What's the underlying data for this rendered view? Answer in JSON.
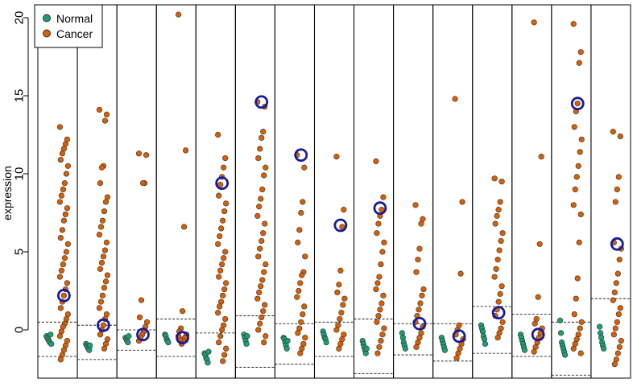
{
  "chart_data": {
    "type": "scatter",
    "title": "",
    "xlabel": "",
    "ylabel": "expression",
    "ylim": [
      -3.2,
      21.5
    ],
    "yticks": [
      0,
      5,
      10,
      15,
      20
    ],
    "grid": false,
    "legend": {
      "placement": "top-left",
      "entries": [
        {
          "name": "Normal",
          "color": "#1b9e77"
        },
        {
          "name": "Cancer",
          "color": "#d95f02"
        }
      ]
    },
    "marker_color": "#1a1a99",
    "panels": [
      {
        "normal": [
          -0.4,
          -0.5,
          -0.6,
          -0.7,
          -0.8,
          -0.3,
          -0.9
        ],
        "cancer": [
          13.0,
          12.2,
          11.9,
          11.6,
          11.3,
          10.9,
          10.5,
          10.0,
          9.4,
          9.0,
          8.6,
          8.2,
          7.8,
          7.4,
          7.0,
          6.4,
          5.9,
          5.5,
          5.0,
          4.6,
          4.2,
          3.8,
          3.4,
          3.0,
          2.6,
          2.2,
          1.8,
          1.4,
          1.0,
          0.7,
          0.4,
          0.2,
          -0.1,
          -0.4,
          -0.7,
          -1.0,
          -1.3,
          -1.6,
          -1.9
        ],
        "marker": 2.2,
        "upper": 0.5,
        "lower": -1.7
      },
      {
        "normal": [
          -0.9,
          -1.0,
          -1.1,
          -1.2,
          -1.3,
          -1.0
        ],
        "cancer": [
          14.1,
          13.8,
          13.4,
          10.5,
          10.4,
          9.4,
          8.5,
          8.2,
          7.6,
          7.0,
          6.6,
          6.1,
          5.6,
          5.1,
          4.7,
          4.3,
          3.9,
          3.5,
          3.1,
          2.7,
          2.2,
          1.8,
          1.4,
          1.0,
          0.7,
          0.3,
          0.0,
          -0.3,
          -0.6,
          -0.9,
          -1.2
        ],
        "marker": 0.3,
        "upper": 0.3,
        "lower": -1.9
      },
      {
        "normal": [
          -0.5,
          -0.6,
          -0.7,
          -0.8,
          -0.4
        ],
        "cancer": [
          11.3,
          11.2,
          9.4,
          9.4,
          1.9,
          0.8,
          0.5,
          0.2,
          -0.1,
          -0.3,
          -0.5,
          -0.7
        ],
        "marker": -0.3,
        "upper": 0.0,
        "lower": -1.3
      },
      {
        "normal": [
          -0.3,
          -0.4,
          -0.6,
          -0.7,
          -0.8
        ],
        "cancer": [
          20.2,
          11.5,
          6.6,
          1.2,
          0.1,
          -0.1,
          -0.3,
          -0.5,
          -0.7,
          -0.9,
          -0.6,
          -0.4
        ],
        "marker": -0.5,
        "upper": 0.7,
        "lower": -1.7
      },
      {
        "normal": [
          -1.5,
          -1.6,
          -1.8,
          -1.9,
          -2.1,
          -1.4
        ],
        "cancer": [
          12.5,
          11.0,
          10.4,
          9.8,
          9.3,
          8.6,
          8.1,
          7.6,
          7.0,
          6.5,
          6.0,
          5.5,
          5.0,
          4.6,
          4.2,
          3.8,
          3.4,
          3.0,
          2.6,
          2.2,
          1.8,
          1.5,
          1.1,
          0.7,
          0.3,
          0.0,
          -0.4,
          -0.8,
          -1.2,
          -1.6,
          -2.0
        ],
        "marker": 9.4,
        "upper": -0.2,
        "lower": null
      },
      {
        "normal": [
          -0.3,
          -0.5,
          -0.7,
          -0.9,
          -0.4
        ],
        "cancer": [
          14.6,
          14.3,
          12.7,
          12.3,
          11.6,
          11.0,
          10.4,
          9.9,
          9.0,
          8.4,
          7.9,
          7.3,
          6.8,
          6.2,
          5.7,
          5.2,
          4.7,
          4.2,
          3.7,
          3.2,
          2.8,
          2.4,
          2.0,
          1.6,
          1.2,
          0.8,
          0.4,
          0.0,
          -0.4,
          -0.8
        ],
        "marker": 14.6,
        "upper": 0.9,
        "lower": -2.4
      },
      {
        "normal": [
          -0.5,
          -0.6,
          -0.8,
          -1.0,
          -1.2,
          -0.7
        ],
        "cancer": [
          11.2,
          10.4,
          8.2,
          7.5,
          6.4,
          5.6,
          4.7,
          3.7,
          3.5,
          3.0,
          2.5,
          2.1,
          1.5,
          1.0,
          0.5,
          0.1,
          -0.2,
          -0.5,
          -0.9,
          -1.2,
          -1.5
        ],
        "marker": 11.2,
        "upper": 0.4,
        "lower": -2.2
      },
      {
        "normal": [
          -0.1,
          -0.3,
          -0.5,
          -0.6,
          -0.8
        ],
        "cancer": [
          11.1,
          7.7,
          6.6,
          3.8,
          2.9,
          2.4,
          2.0,
          1.6,
          1.1,
          0.7,
          0.3,
          0.0,
          -0.3,
          -0.6,
          -0.9,
          -1.2
        ],
        "marker": 6.7,
        "upper": 0.5,
        "lower": -1.7
      },
      {
        "normal": [
          -0.7,
          -0.9,
          -1.1,
          -1.3,
          -1.5,
          -1.2
        ],
        "cancer": [
          10.8,
          8.5,
          7.7,
          7.3,
          6.8,
          6.2,
          5.6,
          5.0,
          4.2,
          3.4,
          3.0,
          2.6,
          2.2,
          1.7,
          1.3,
          0.9,
          0.5,
          0.1,
          -0.3,
          -0.7,
          -1.1,
          -1.5
        ],
        "marker": 7.8,
        "upper": 0.7,
        "lower": -2.8
      },
      {
        "normal": [
          -0.2,
          -0.5,
          -0.8,
          -1.0,
          -1.2
        ],
        "cancer": [
          8.0,
          7.1,
          6.8,
          5.2,
          4.5,
          3.7,
          2.6,
          2.2,
          1.7,
          1.3,
          0.9,
          0.5,
          0.2,
          -0.2,
          -0.5,
          -0.8,
          -1.1
        ],
        "marker": 0.4,
        "upper": 0.4,
        "lower": -1.6
      },
      {
        "normal": [
          -0.5,
          -0.7,
          -0.9,
          -1.1,
          -1.3
        ],
        "cancer": [
          14.8,
          8.2,
          3.6,
          0.3,
          0.0,
          -0.3,
          -0.6,
          -0.9,
          -1.2,
          -1.5,
          -1.8
        ],
        "marker": -0.4,
        "upper": 0.4,
        "lower": -2.0
      },
      {
        "normal": [
          0.3,
          0.1,
          -0.1,
          -0.4,
          -0.6,
          -0.9
        ],
        "cancer": [
          9.7,
          9.5,
          8.2,
          7.7,
          7.3,
          6.8,
          6.2,
          5.7,
          5.1,
          4.5,
          3.9,
          3.4,
          2.8,
          2.3,
          1.8,
          1.3,
          0.9,
          0.5,
          0.1,
          -0.2,
          -0.5
        ],
        "marker": 1.1,
        "upper": 1.5,
        "lower": -1.5
      },
      {
        "normal": [
          -0.3,
          -0.5,
          -0.7,
          -0.9,
          -1.1,
          -1.3
        ],
        "cancer": [
          19.7,
          11.1,
          5.5,
          2.1,
          0.7,
          0.4,
          0.1,
          -0.2,
          -0.5,
          -0.8,
          -1.1,
          -1.4
        ],
        "marker": -0.3,
        "upper": 1.0,
        "lower": -1.7
      },
      {
        "normal": [
          0.6,
          -0.2,
          -0.8,
          -1.0,
          -1.2,
          -1.4,
          -1.6
        ],
        "cancer": [
          19.6,
          17.8,
          17.1,
          14.5,
          14.0,
          13.0,
          12.2,
          11.4,
          10.5,
          9.8,
          9.0,
          8.0,
          7.4,
          5.6,
          3.3,
          2.0,
          1.0,
          0.5,
          0.1,
          -0.3,
          -0.6,
          -0.9,
          -1.2,
          -1.5
        ],
        "marker": 14.5,
        "upper": 0.5,
        "lower": -2.9
      },
      {
        "normal": [
          0.2,
          -0.2,
          -0.5,
          -0.8,
          -1.0,
          -1.2
        ],
        "cancer": [
          12.7,
          12.4,
          9.8,
          9.0,
          8.2,
          5.6,
          5.2,
          4.5,
          3.6,
          3.0,
          2.4,
          1.9,
          1.4,
          1.0,
          0.5,
          0.1,
          -0.3,
          -0.7,
          -1.1,
          -1.5,
          -1.9,
          -2.2
        ],
        "marker": 5.5,
        "upper": 2.0,
        "lower": null
      }
    ]
  }
}
